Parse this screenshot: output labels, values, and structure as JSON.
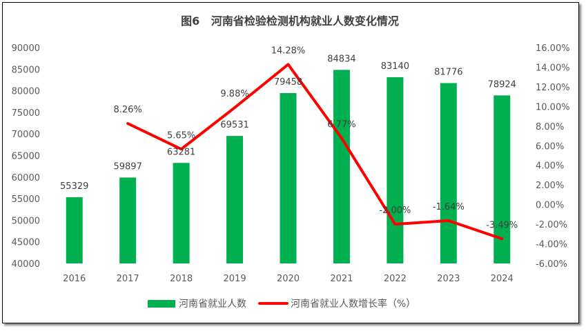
{
  "chart_data": {
    "type": "bar+line",
    "title": "图6   河南省检验检测机构就业人数变化情况",
    "categories": [
      "2016",
      "2017",
      "2018",
      "2019",
      "2020",
      "2021",
      "2022",
      "2023",
      "2024"
    ],
    "series": [
      {
        "name": "河南省就业人数",
        "type": "bar",
        "axis": "left",
        "color": "#00B050",
        "values": [
          55329,
          59897,
          63281,
          69531,
          79458,
          84834,
          83140,
          81776,
          78924
        ],
        "labels": [
          "55329",
          "59897",
          "63281",
          "69531",
          "79458",
          "84834",
          "83140",
          "81776",
          "78924"
        ]
      },
      {
        "name": "河南省就业人数增长率（%）",
        "type": "line",
        "axis": "right",
        "color": "#FF0000",
        "values": [
          null,
          8.26,
          5.65,
          9.88,
          14.28,
          6.77,
          -2.0,
          -1.64,
          -3.49
        ],
        "labels": [
          "",
          "8.26%",
          "5.65%",
          "9.88%",
          "14.28%",
          "6.77%",
          "-2.00%",
          "-1.64%",
          "-3.49%"
        ]
      }
    ],
    "y_left": {
      "min": 40000,
      "max": 90000,
      "step": 5000,
      "ticks": [
        "40000",
        "45000",
        "50000",
        "55000",
        "60000",
        "65000",
        "70000",
        "75000",
        "80000",
        "85000",
        "90000"
      ]
    },
    "y_right": {
      "min": -6,
      "max": 16,
      "step": 2,
      "ticks": [
        "-6.00%",
        "-4.00%",
        "-2.00%",
        "0.00%",
        "2.00%",
        "4.00%",
        "6.00%",
        "8.00%",
        "10.00%",
        "12.00%",
        "14.00%",
        "16.00%"
      ]
    },
    "grid": false,
    "legend": "bottom"
  }
}
